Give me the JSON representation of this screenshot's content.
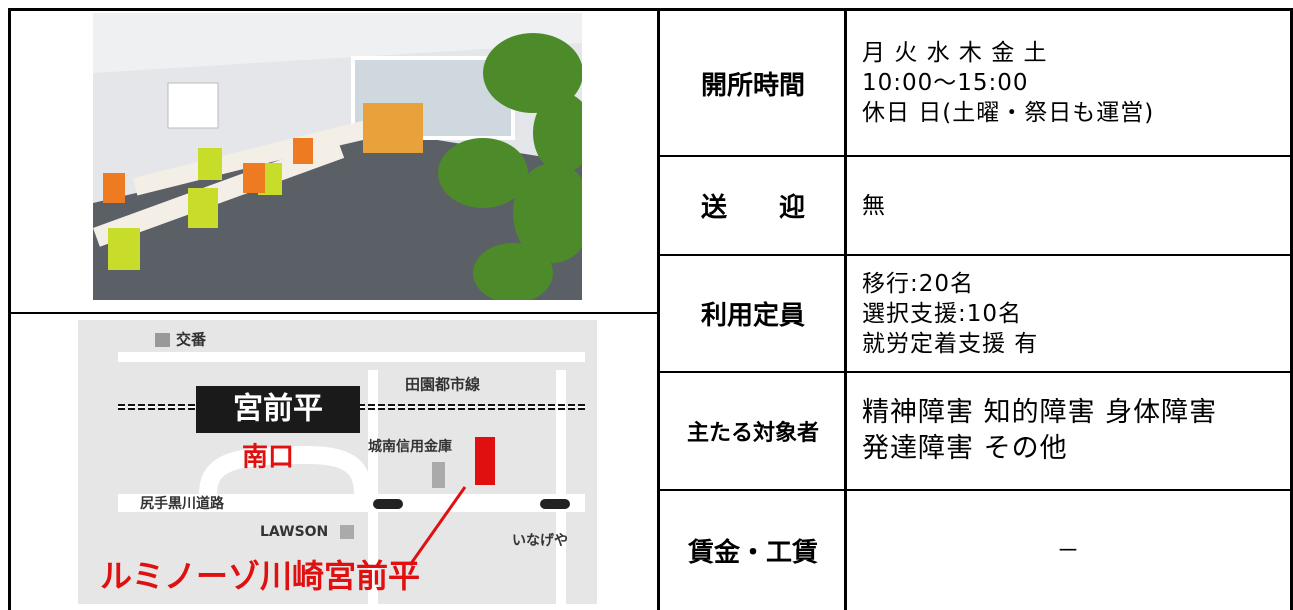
{
  "table": {
    "rows": [
      {
        "label": "開所時間",
        "lines": [
          "月 火 水 木 金 土",
          "10:00〜15:00",
          "休日 日(土曜・祭日も運営)"
        ]
      },
      {
        "label": "送　　迎",
        "lines": [
          "無"
        ]
      },
      {
        "label": "利用定員",
        "lines": [
          "移行:20名",
          "選択支援:10名",
          "就労定着支援 有"
        ]
      },
      {
        "label": "主たる対象者",
        "lines": [
          "精神障害 知的障害 身体障害",
          "発達障害 その他"
        ]
      },
      {
        "label": "賃金・工賃",
        "lines": [
          "－"
        ]
      }
    ]
  },
  "map": {
    "koban": "交番",
    "rail": "田園都市線",
    "station": "宮前平",
    "exit": "南口",
    "bank": "城南信用金庫",
    "road": "尻手黒川道路",
    "lawson": "LAWSON",
    "inageya": "いなげや",
    "name": "ルミノーゾ川崎宮前平"
  }
}
